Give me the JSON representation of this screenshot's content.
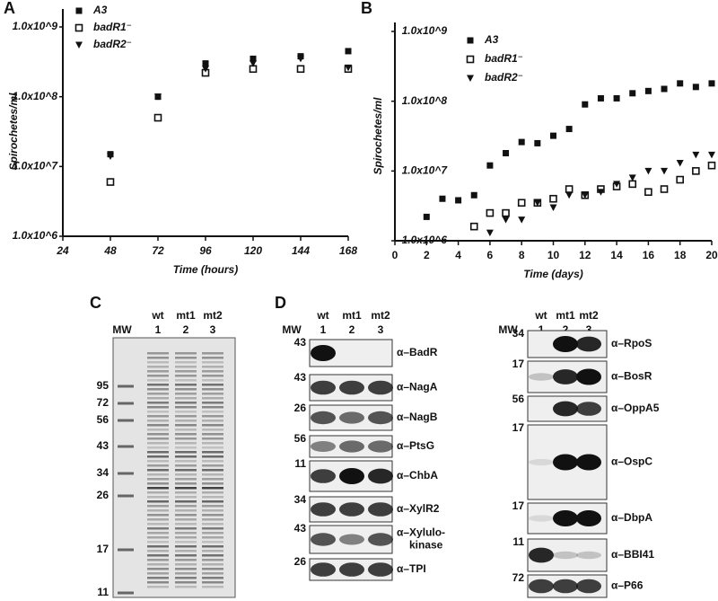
{
  "panel_labels": [
    "A",
    "B",
    "C",
    "D"
  ],
  "chart_data": [
    {
      "type": "scatter",
      "y_label": "Spirochetes/ml",
      "x_label": "Time (hours)",
      "log_y": true,
      "xlim": [
        24,
        168
      ],
      "xticks": [
        24,
        48,
        72,
        96,
        120,
        144,
        168
      ],
      "ylim": [
        1000000,
        1000000000
      ],
      "yticks": [
        {
          "value": 1000000,
          "label": "1.0x10^6"
        },
        {
          "value": 10000000,
          "label": "1.0x10^7"
        },
        {
          "value": 100000000,
          "label": "1.0x10^8"
        },
        {
          "value": 1000000000,
          "label": "1.0x10^9"
        }
      ],
      "x": [
        48,
        72,
        96,
        120,
        144,
        168
      ],
      "series": [
        {
          "name": "A3",
          "color": "#111111",
          "marker": "square-filled",
          "values": [
            15000000,
            100000000,
            300000000,
            350000000,
            380000000,
            450000000
          ]
        },
        {
          "name": "badR1⁻",
          "color": "#111111",
          "marker": "square-open",
          "values": [
            6000000,
            50000000,
            220000000,
            250000000,
            250000000,
            250000000
          ]
        },
        {
          "name": "badR2⁻",
          "color": "#111111",
          "marker": "triangle-down",
          "values": [
            14000000,
            100000000,
            250000000,
            300000000,
            350000000,
            260000000
          ]
        }
      ]
    },
    {
      "type": "scatter",
      "y_label": "Spirochetes/ml",
      "x_label": "Time (days)",
      "log_y": true,
      "xlim": [
        0,
        20
      ],
      "xticks": [
        0,
        2,
        4,
        6,
        8,
        10,
        12,
        14,
        16,
        18,
        20
      ],
      "ylim": [
        1000000,
        1000000000
      ],
      "yticks": [
        {
          "value": 1000000,
          "label": "1.0x10^6"
        },
        {
          "value": 10000000,
          "label": "1.0x10^7"
        },
        {
          "value": 100000000,
          "label": "1.0x10^8"
        },
        {
          "value": 1000000000,
          "label": "1.0x10^9"
        }
      ],
      "series": [
        {
          "name": "A3",
          "color": "#111111",
          "marker": "square-filled",
          "x": [
            2,
            3,
            4,
            5,
            6,
            7,
            8,
            9,
            10,
            11,
            12,
            13,
            14,
            15,
            16,
            17,
            18,
            19,
            20
          ],
          "values": [
            2200000,
            4000000,
            3800000,
            4500000,
            12000000,
            18000000,
            26000000,
            25000000,
            32000000,
            40000000,
            90000000,
            110000000,
            110000000,
            130000000,
            140000000,
            150000000,
            180000000,
            160000000,
            180000000
          ]
        },
        {
          "name": "badR1⁻",
          "color": "#111111",
          "marker": "square-open",
          "x": [
            5,
            6,
            7,
            8,
            9,
            10,
            11,
            12,
            13,
            14,
            15,
            16,
            17,
            18,
            19,
            20
          ],
          "values": [
            1600000,
            2500000,
            2500000,
            3500000,
            3500000,
            4000000,
            5500000,
            4500000,
            5500000,
            6000000,
            6500000,
            5000000,
            5500000,
            7500000,
            10000000,
            12000000
          ]
        },
        {
          "name": "badR2⁻",
          "color": "#111111",
          "marker": "triangle-down",
          "x": [
            6,
            7,
            8,
            9,
            10,
            11,
            12,
            13,
            14,
            15,
            16,
            17,
            18,
            19,
            20
          ],
          "values": [
            1300000,
            2000000,
            2000000,
            3500000,
            3000000,
            4500000,
            4500000,
            5000000,
            6500000,
            8000000,
            10000000,
            10000000,
            13000000,
            17000000,
            17000000
          ]
        }
      ]
    }
  ],
  "gel": {
    "mw_label": "MW",
    "lanes": [
      "wt",
      "mt1",
      "mt2"
    ],
    "lane_numbers": [
      "1",
      "2",
      "3"
    ],
    "markers": [
      "95",
      "72",
      "56",
      "43",
      "34",
      "26",
      "17",
      "11"
    ]
  },
  "blots": [
    {
      "mw_label": "MW",
      "lanes": [
        "wt",
        "mt1",
        "mt2"
      ],
      "lane_numbers": [
        "1",
        "2",
        "3"
      ],
      "rows": [
        {
          "mw": "43",
          "label": [
            "α–BadR"
          ]
        },
        {
          "mw": "43",
          "label": [
            "α–NagA"
          ]
        },
        {
          "mw": "26",
          "label": [
            "α–NagB"
          ]
        },
        {
          "mw": "56",
          "label": [
            "α–PtsG"
          ]
        },
        {
          "mw": "11",
          "label": [
            "α–ChbA"
          ]
        },
        {
          "mw": "34",
          "label": [
            "α–XylR2"
          ]
        },
        {
          "mw": "43",
          "label": [
            "α–Xylulo-",
            "kinase"
          ]
        },
        {
          "mw": "26",
          "label": [
            "α–TPI"
          ]
        }
      ]
    },
    {
      "mw_label": "MW",
      "lanes": [
        "wt",
        "mt1",
        "mt2"
      ],
      "lane_numbers": [
        "1",
        "2",
        "3"
      ],
      "rows": [
        {
          "mw": "34",
          "label": [
            "α–RpoS"
          ]
        },
        {
          "mw": "17",
          "label": [
            "α–BosR"
          ]
        },
        {
          "mw": "56",
          "label": [
            "α–OppA5"
          ]
        },
        {
          "mw": "17",
          "label": [
            "α–OspC"
          ]
        },
        {
          "mw": "17",
          "label": [
            "α–DbpA"
          ]
        },
        {
          "mw": "11",
          "label": [
            "α–BBI41"
          ]
        },
        {
          "mw": "72",
          "label": [
            "α–P66"
          ]
        }
      ]
    }
  ]
}
